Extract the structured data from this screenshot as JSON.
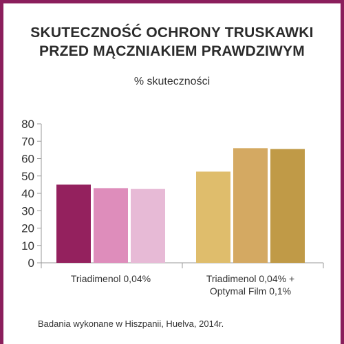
{
  "title_line1": "SKUTECZNOŚĆ OCHRONY TRUSKAWKI",
  "title_line2": "PRZED MĄCZNIAKIEM PRAWDZIWYM",
  "subtitle": "% skuteczności",
  "footnote": "Badania wykonane w Hiszpanii, Huelva, 2014r.",
  "colors": {
    "frame": "#8b1f5c"
  },
  "chart_data": {
    "type": "bar",
    "ylim": [
      0,
      80
    ],
    "yticks": [
      "0",
      "10",
      "20",
      "30",
      "40",
      "50",
      "60",
      "70",
      "80"
    ],
    "grid": false,
    "groups": [
      {
        "label_lines": [
          "Triadimenol 0,04%"
        ],
        "bars": [
          {
            "value": 45,
            "color": "#94215e"
          },
          {
            "value": 43,
            "color": "#de8dbb"
          },
          {
            "value": 42.5,
            "color": "#e7bad6"
          }
        ]
      },
      {
        "label_lines": [
          "Triadimenol 0,04% +",
          "Optymal Film 0,1%"
        ],
        "bars": [
          {
            "value": 52.5,
            "color": "#dfbd6c"
          },
          {
            "value": 66,
            "color": "#d4a962"
          },
          {
            "value": 65.5,
            "color": "#c09a47"
          }
        ]
      }
    ]
  }
}
